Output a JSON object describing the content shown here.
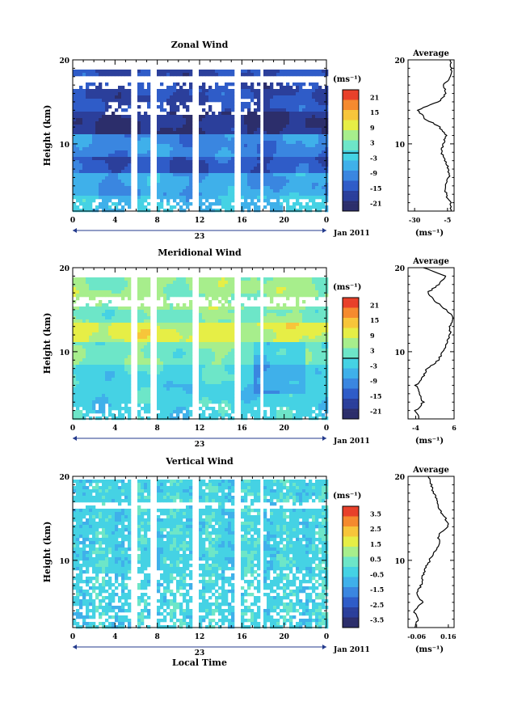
{
  "figure": {
    "x_axis_label": "Local Time",
    "date_label": "Jan 2011",
    "day_label": "23",
    "average_title": "Average",
    "height_label": "Height (km)",
    "unit_label": "(ms⁻¹)"
  },
  "chart_data": [
    {
      "type": "heatmap",
      "title": "Zonal Wind",
      "ylabel": "Height (km)",
      "xlabel": "Local Time",
      "x_ticks": [
        "0",
        "4",
        "8",
        "12",
        "16",
        "20",
        "0"
      ],
      "xlim": [
        0,
        24
      ],
      "ylim": [
        2,
        20
      ],
      "y_ticks": [
        "10",
        "20"
      ],
      "colorbar": {
        "unit": "(ms⁻¹)",
        "ticks": [
          "21",
          "15",
          "9",
          "3",
          "-3",
          "-9",
          "-15",
          "-21"
        ],
        "range": [
          -24,
          24
        ],
        "highlight": -1
      },
      "data_gaps_hours": [
        [
          5.5,
          6.0
        ],
        [
          7.3,
          7.8
        ],
        [
          11.3,
          11.8
        ],
        [
          15.4,
          15.9
        ],
        [
          17.7,
          18.0
        ]
      ],
      "profile_panel": {
        "title": "Average",
        "x_ticks": [
          "-30",
          "-5"
        ],
        "xlim": [
          -35,
          0
        ],
        "x_unit": "(ms⁻¹)",
        "heights_km": [
          2,
          3,
          4,
          5,
          6,
          7,
          8,
          9,
          10,
          11,
          12,
          13,
          14,
          15,
          16,
          17,
          18,
          19,
          20
        ],
        "values": [
          -3,
          -3,
          -6,
          -7,
          -4,
          -4,
          -7,
          -10,
          -8,
          -6,
          -11,
          -22,
          -28,
          -12,
          -6,
          -8,
          -3,
          -2,
          -3
        ]
      }
    },
    {
      "type": "heatmap",
      "title": "Meridional Wind",
      "ylabel": "Height (km)",
      "xlabel": "Local Time",
      "x_ticks": [
        "0",
        "4",
        "8",
        "12",
        "16",
        "20",
        "0"
      ],
      "xlim": [
        0,
        24
      ],
      "ylim": [
        2,
        20
      ],
      "y_ticks": [
        "10",
        "20"
      ],
      "colorbar": {
        "unit": "(ms⁻¹)",
        "ticks": [
          "21",
          "15",
          "9",
          "3",
          "-3",
          "-9",
          "-15",
          "-21"
        ],
        "range": [
          -24,
          24
        ],
        "highlight": 0
      },
      "data_gaps_hours": [
        [
          5.5,
          6.0
        ],
        [
          7.3,
          7.8
        ],
        [
          11.3,
          11.8
        ],
        [
          15.4,
          15.9
        ],
        [
          17.7,
          18.0
        ]
      ],
      "profile_panel": {
        "title": "Average",
        "x_ticks": [
          "-4",
          "6"
        ],
        "xlim": [
          -6,
          6
        ],
        "x_unit": "(ms⁻¹)",
        "heights_km": [
          2,
          3,
          4,
          5,
          6,
          7,
          8,
          9,
          10,
          11,
          12,
          13,
          14,
          15,
          16,
          17,
          18,
          19,
          20
        ],
        "values": [
          -3,
          -4,
          -2,
          -3,
          -4,
          -2,
          -1,
          2,
          3,
          4,
          5,
          5,
          6,
          4,
          1,
          -1,
          2,
          4,
          -2
        ]
      }
    },
    {
      "type": "heatmap",
      "title": "Vertical Wind",
      "ylabel": "Height (km)",
      "xlabel": "Local Time",
      "x_ticks": [
        "0",
        "4",
        "8",
        "12",
        "16",
        "20",
        "0"
      ],
      "xlim": [
        0,
        24
      ],
      "ylim": [
        2,
        20
      ],
      "y_ticks": [
        "10",
        "20"
      ],
      "colorbar": {
        "unit": "(ms⁻¹)",
        "ticks": [
          "3.5",
          "2.5",
          "1.5",
          "0.5",
          "-0.5",
          "-1.5",
          "-2.5",
          "-3.5"
        ],
        "range": [
          -4,
          4
        ],
        "highlight": null
      },
      "data_gaps_hours": [
        [
          5.5,
          6.0
        ],
        [
          7.3,
          7.8
        ],
        [
          11.3,
          11.8
        ],
        [
          15.4,
          15.9
        ],
        [
          17.7,
          18.0
        ]
      ],
      "profile_panel": {
        "title": "Average",
        "x_ticks": [
          "-0.06",
          "0.16"
        ],
        "xlim": [
          -0.12,
          0.2
        ],
        "x_unit": "(ms⁻¹)",
        "heights_km": [
          2,
          3,
          4,
          5,
          6,
          7,
          8,
          9,
          10,
          11,
          12,
          13,
          14,
          15,
          16,
          17,
          18,
          19,
          20
        ],
        "values": [
          -0.08,
          -0.05,
          -0.08,
          -0.02,
          -0.06,
          -0.03,
          -0.02,
          0.0,
          0.03,
          0.06,
          0.1,
          0.09,
          0.16,
          0.14,
          0.1,
          0.08,
          0.06,
          0.04,
          0.02
        ]
      }
    }
  ]
}
